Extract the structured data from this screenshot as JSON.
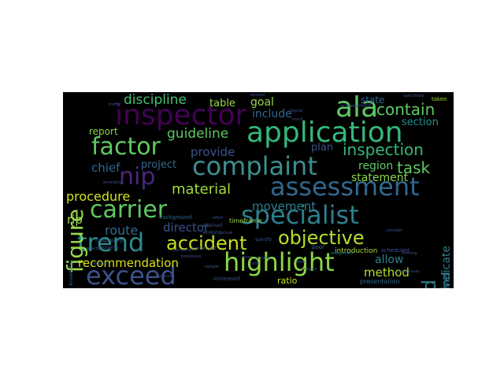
{
  "colors": {
    "panel_background": "#000000",
    "page_background": "#ffffff",
    "palette": [
      "#440154",
      "#443983",
      "#31688e",
      "#21918c",
      "#35b779",
      "#90d743",
      "#fde725"
    ]
  },
  "words": [
    {
      "text": "application",
      "color": "#35b779"
    },
    {
      "text": "inspector",
      "color": "#440154"
    },
    {
      "text": "ala",
      "color": "#5ec962"
    },
    {
      "text": "complaint",
      "color": "#3e8e8f"
    },
    {
      "text": "assessment",
      "color": "#31688e"
    },
    {
      "text": "specialist",
      "color": "#2c7f8e"
    },
    {
      "text": "highlight",
      "color": "#8bd646"
    },
    {
      "text": "exceed",
      "color": "#3b528b"
    },
    {
      "text": "trend",
      "color": "#2d8a8c"
    },
    {
      "text": "carrier",
      "color": "#5ec962"
    },
    {
      "text": "factor",
      "color": "#5ec962"
    },
    {
      "text": "figure",
      "color": "#9ad74a"
    },
    {
      "text": "nip",
      "color": "#482878"
    },
    {
      "text": "accident",
      "color": "#c8e020"
    },
    {
      "text": "objective",
      "color": "#b5de2b"
    },
    {
      "text": "railroad",
      "color": "#2c7f8e"
    },
    {
      "text": "contain",
      "color": "#5ec962"
    },
    {
      "text": "inspection",
      "color": "#35b779"
    },
    {
      "text": "task",
      "color": "#5ec962"
    },
    {
      "text": "material",
      "color": "#a0da39"
    },
    {
      "text": "discipline",
      "color": "#44bf70"
    },
    {
      "text": "guideline",
      "color": "#5ec962"
    },
    {
      "text": "procedure",
      "color": "#d2e21b"
    },
    {
      "text": "route",
      "color": "#31688e"
    },
    {
      "text": "director",
      "color": "#3b528b"
    },
    {
      "text": "movement",
      "color": "#2c7f8e"
    },
    {
      "text": "recommendation",
      "color": "#d8e219"
    },
    {
      "text": "rip",
      "color": "#9ad74a"
    },
    {
      "text": "chief",
      "color": "#31688e"
    },
    {
      "text": "provide",
      "color": "#3b528b"
    },
    {
      "text": "project",
      "color": "#31688e"
    },
    {
      "text": "region",
      "color": "#5ec962"
    },
    {
      "text": "statement",
      "color": "#8bd646"
    },
    {
      "text": "method",
      "color": "#b5de2b"
    },
    {
      "text": "allow",
      "color": "#2c7f8e"
    },
    {
      "text": "level",
      "color": "#31688e"
    },
    {
      "text": "indicate",
      "color": "#2c7f8e"
    },
    {
      "text": "section",
      "color": "#21918c"
    },
    {
      "text": "state",
      "color": "#31688e"
    },
    {
      "text": "goal",
      "color": "#9ad74a"
    },
    {
      "text": "include",
      "color": "#31688e"
    },
    {
      "text": "table",
      "color": "#9ad74a"
    },
    {
      "text": "plan",
      "color": "#3b528b"
    },
    {
      "text": "report",
      "color": "#8bd646"
    },
    {
      "text": "ratio",
      "color": "#cce11e"
    },
    {
      "text": "introduction",
      "color": "#a8db34"
    },
    {
      "text": "presentation",
      "color": "#31688e"
    },
    {
      "text": "scheduled",
      "color": "#3b528b"
    },
    {
      "text": "timeframe",
      "color": "#9ad74a"
    },
    {
      "text": "background",
      "color": "#31688e"
    },
    {
      "text": "concerned",
      "color": "#3b528b"
    },
    {
      "text": "attained",
      "color": "#3b528b"
    },
    {
      "text": "working",
      "color": "#3b528b"
    },
    {
      "text": "increased",
      "color": "#3b528b"
    },
    {
      "text": "property",
      "color": "#3b528b"
    },
    {
      "text": "knowledge",
      "color": "#31688e"
    },
    {
      "text": "trespassing",
      "color": "#31688e"
    },
    {
      "text": "assignment",
      "color": "#2c7f8e"
    },
    {
      "text": "specify",
      "color": "#3b528b"
    },
    {
      "text": "poor",
      "color": "#31688e"
    },
    {
      "text": "intent",
      "color": "#3b528b"
    },
    {
      "text": "achievement",
      "color": "#3b528b"
    },
    {
      "text": "taken",
      "color": "#a0da39"
    },
    {
      "text": "regular",
      "color": "#3b528b"
    },
    {
      "text": "desired",
      "color": "#3b528b"
    },
    {
      "text": "effort",
      "color": "#3b528b"
    },
    {
      "text": "actual",
      "color": "#3b528b"
    },
    {
      "text": "timeliness",
      "color": "#3b528b"
    },
    {
      "text": "notional",
      "color": "#31688e"
    },
    {
      "text": "emerging",
      "color": "#3b528b"
    },
    {
      "text": "selection",
      "color": "#31688e"
    },
    {
      "text": "traffic",
      "color": "#3b528b"
    },
    {
      "text": "personnel",
      "color": "#3b528b"
    },
    {
      "text": "profile",
      "color": "#3b528b"
    },
    {
      "text": "awareness",
      "color": "#3b528b"
    },
    {
      "text": "forming",
      "color": "#3b528b"
    },
    {
      "text": "specifiable",
      "color": "#3b528b"
    },
    {
      "text": "analysis",
      "color": "#3b528b"
    },
    {
      "text": "consider",
      "color": "#3b528b"
    },
    {
      "text": "sample",
      "color": "#3b528b"
    },
    {
      "text": "note",
      "color": "#3b528b"
    },
    {
      "text": "resource",
      "color": "#3b528b"
    },
    {
      "text": "more",
      "color": "#3b528b"
    },
    {
      "text": "data",
      "color": "#3b528b"
    }
  ]
}
